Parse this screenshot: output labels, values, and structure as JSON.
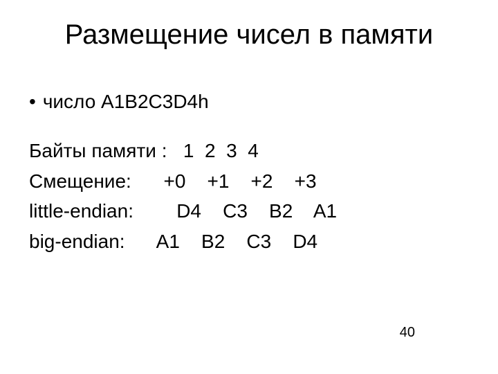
{
  "title": "Размещение чисел в памяти",
  "bullet": {
    "text": "число A1B2C3D4h"
  },
  "lines": {
    "memory_bytes": "Байты памяти :   1  2  3  4",
    "offset": "Смещение:      +0    +1    +2    +3",
    "little": "little-endian:        D4    C3    B2    A1",
    "big": "big-endian:      A1    B2    C3    D4"
  },
  "page_number": "40",
  "styling": {
    "background_color": "#ffffff",
    "text_color": "#000000",
    "title_fontsize": 40,
    "body_fontsize": 28,
    "page_num_fontsize": 20,
    "font_family": "Arial"
  }
}
